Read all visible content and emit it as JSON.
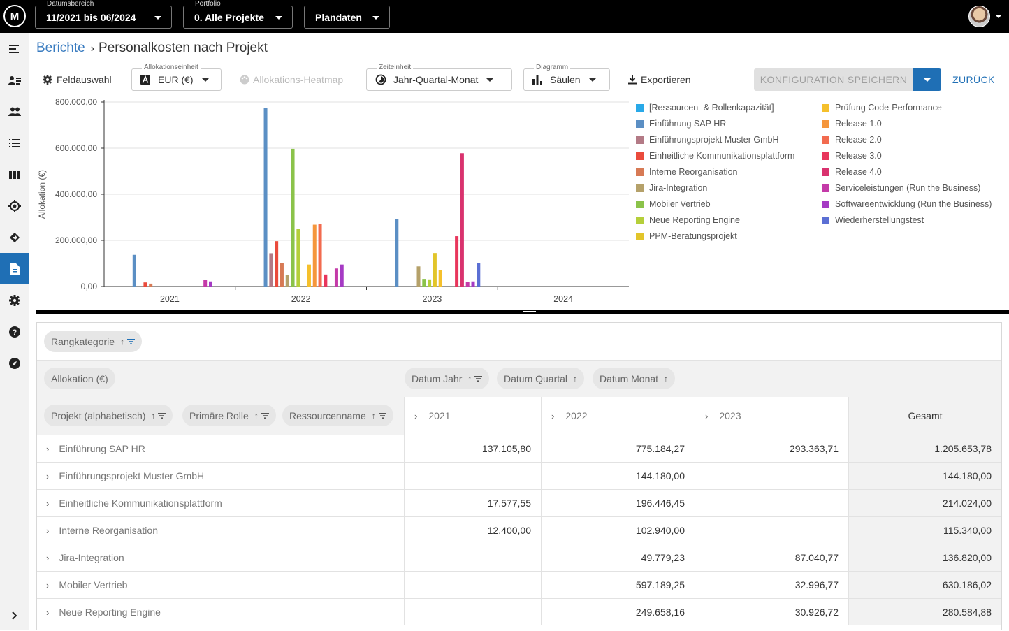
{
  "topbar": {
    "logo": "M",
    "date_range": {
      "label": "Datumsbereich",
      "value": "11/2021 bis 06/2024"
    },
    "portfolio": {
      "label": "Portfolio",
      "value": "0. Alle Projekte"
    },
    "data_mode": {
      "value": "Plandaten"
    }
  },
  "sidebar": {
    "items": [
      {
        "icon": "menu-collapse-icon"
      },
      {
        "icon": "person-list-icon"
      },
      {
        "icon": "people-icon"
      },
      {
        "icon": "list-icon"
      },
      {
        "icon": "columns-icon"
      },
      {
        "icon": "target-icon"
      },
      {
        "icon": "diamond-arrow-icon"
      },
      {
        "icon": "document-icon",
        "active": true
      },
      {
        "icon": "gear-icon"
      },
      {
        "icon": "help-icon"
      },
      {
        "icon": "compass-icon"
      },
      {
        "icon": "chevron-right-icon"
      }
    ]
  },
  "breadcrumb": {
    "parent": "Berichte",
    "current": "Personalkosten nach Projekt"
  },
  "toolbar": {
    "field_selection": "Feldauswahl",
    "allocation_unit": {
      "label": "Allokationseinheit",
      "value": "EUR (€)"
    },
    "heatmap": "Allokations-Heatmap",
    "time_unit": {
      "label": "Zeiteinheit",
      "value": "Jahr-Quartal-Monat"
    },
    "chart_type": {
      "label": "Diagramm",
      "value": "Säulen"
    },
    "export": "Exportieren",
    "save_config": "KONFIGURATION SPEICHERN",
    "back": "ZURÜCK"
  },
  "chart_data": {
    "type": "bar",
    "ylabel": "Allokation (€)",
    "ylim": [
      0,
      800000
    ],
    "y_ticks": [
      "800.000,00",
      "600.000,00",
      "400.000,00",
      "200.000,00",
      "0,00"
    ],
    "categories": [
      "2021",
      "2022",
      "2023",
      "2024"
    ],
    "legend_position": "right",
    "grid": true,
    "series": [
      {
        "name": "[Ressourcen- & Rollenkapazität]",
        "color": "#29a9e8",
        "values": [
          0,
          0,
          0,
          0
        ]
      },
      {
        "name": "Einführung SAP HR",
        "color": "#5b8fc4",
        "values": [
          137105.8,
          775184.27,
          293363.71,
          0
        ]
      },
      {
        "name": "Einführungsprojekt Muster GmbH",
        "color": "#b37a86",
        "values": [
          0,
          144180.0,
          0,
          0
        ]
      },
      {
        "name": "Einheitliche Kommunikationsplattform",
        "color": "#ea4b3c",
        "values": [
          17577.55,
          196446.45,
          0,
          0
        ]
      },
      {
        "name": "Interne Reorganisation",
        "color": "#d77a55",
        "values": [
          12400.0,
          102940.0,
          0,
          0
        ]
      },
      {
        "name": "Jira-Integration",
        "color": "#b5a16a",
        "values": [
          0,
          49779.23,
          87040.77,
          0
        ]
      },
      {
        "name": "Mobiler Vertrieb",
        "color": "#8bc34a",
        "values": [
          0,
          597189.25,
          32996.77,
          0
        ]
      },
      {
        "name": "Neue Reporting Engine",
        "color": "#b5cf3a",
        "values": [
          0,
          249658.16,
          30926.72,
          0
        ]
      },
      {
        "name": "PPM-Beratungsprojekt",
        "color": "#e2c52a",
        "values": [
          0,
          0,
          145000,
          0
        ]
      },
      {
        "name": "Prüfung Code-Performance",
        "color": "#f5c02c",
        "values": [
          0,
          95000,
          72000,
          0
        ]
      },
      {
        "name": "Release 1.0",
        "color": "#f5963c",
        "values": [
          0,
          268000,
          0,
          0
        ]
      },
      {
        "name": "Release 2.0",
        "color": "#f26b4f",
        "values": [
          0,
          272000,
          0,
          0
        ]
      },
      {
        "name": "Release 3.0",
        "color": "#e8365c",
        "values": [
          0,
          52000,
          218000,
          0
        ]
      },
      {
        "name": "Release 4.0",
        "color": "#d9326e",
        "values": [
          0,
          0,
          578000,
          0
        ]
      },
      {
        "name": "Serviceleistungen (Run the Business)",
        "color": "#c43aa8",
        "values": [
          30000,
          78000,
          20000,
          0
        ]
      },
      {
        "name": "Softwareentwicklung (Run the Business)",
        "color": "#a53ac4",
        "values": [
          22000,
          95000,
          22000,
          0
        ]
      },
      {
        "name": "Wiederherstellungstest",
        "color": "#5b6fd4",
        "values": [
          0,
          0,
          102000,
          0
        ]
      }
    ]
  },
  "pivot": {
    "filter_chip": "Rangkategorie",
    "value_chip": "Allokation (€)",
    "column_chips": [
      "Datum Jahr",
      "Datum Quartal",
      "Datum Monat"
    ],
    "row_chips": [
      "Projekt (alphabetisch)",
      "Primäre Rolle",
      "Ressourcenname"
    ],
    "sort_glyph": "↑",
    "expand_glyph": "›",
    "columns": [
      "2021",
      "2022",
      "2023"
    ],
    "total_label": "Gesamt",
    "rows": [
      {
        "name": "Einführung SAP HR",
        "v2021": "137.105,80",
        "v2022": "775.184,27",
        "v2023": "293.363,71",
        "total": "1.205.653,78"
      },
      {
        "name": "Einführungsprojekt Muster GmbH",
        "v2021": "",
        "v2022": "144.180,00",
        "v2023": "",
        "total": "144.180,00"
      },
      {
        "name": "Einheitliche Kommunikationsplattform",
        "v2021": "17.577,55",
        "v2022": "196.446,45",
        "v2023": "",
        "total": "214.024,00"
      },
      {
        "name": "Interne Reorganisation",
        "v2021": "12.400,00",
        "v2022": "102.940,00",
        "v2023": "",
        "total": "115.340,00"
      },
      {
        "name": "Jira-Integration",
        "v2021": "",
        "v2022": "49.779,23",
        "v2023": "87.040,77",
        "total": "136.820,00"
      },
      {
        "name": "Mobiler Vertrieb",
        "v2021": "",
        "v2022": "597.189,25",
        "v2023": "32.996,77",
        "total": "630.186,02"
      },
      {
        "name": "Neue Reporting Engine",
        "v2021": "",
        "v2022": "249.658,16",
        "v2023": "30.926,72",
        "total": "280.584,88"
      }
    ]
  }
}
